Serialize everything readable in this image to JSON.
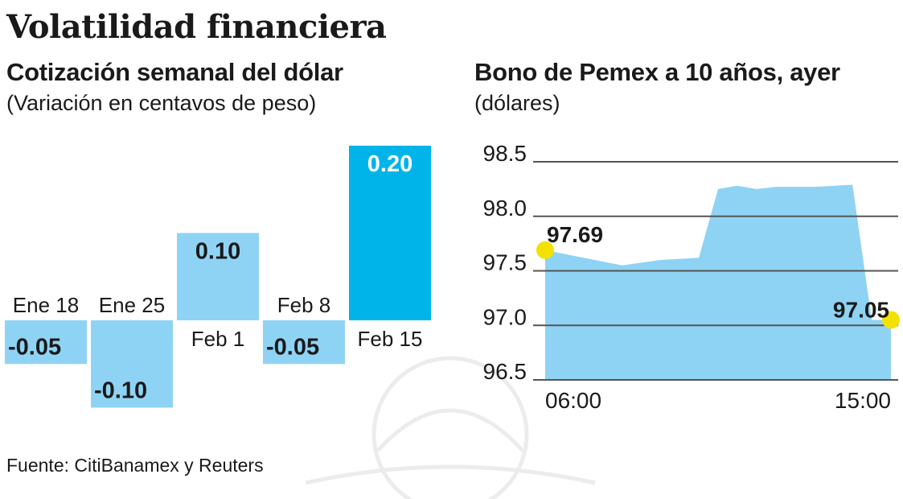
{
  "title": "Volatilidad financiera",
  "source": "Fuente: CitiBanamex y Reuters",
  "colors": {
    "bar_light": "#8fd3f4",
    "bar_highlight": "#00b4e9",
    "area_fill": "#8fd3f4",
    "marker": "#f3e200",
    "grid": "#555555"
  },
  "chart_data": [
    {
      "type": "bar",
      "title": "Cotización semanal del dólar",
      "subtitle": "(Variación en centavos de peso)",
      "categories": [
        "Ene 18",
        "Ene 25",
        "Feb 1",
        "Feb 8",
        "Feb 15"
      ],
      "values": [
        -0.05,
        -0.1,
        0.1,
        -0.05,
        0.2
      ],
      "value_labels": [
        "-0.05",
        "-0.10",
        "0.10",
        "-0.05",
        "0.20"
      ],
      "highlight_index": 4,
      "ylim": [
        -0.1,
        0.2
      ],
      "grid": false
    },
    {
      "type": "area",
      "title": "Bono de Pemex a 10 años, ayer",
      "subtitle": "(dólares)",
      "y_ticks": [
        "98.5",
        "98.0",
        "97.5",
        "97.0",
        "96.5"
      ],
      "ylim": [
        96.5,
        98.5
      ],
      "x_tick_labels": [
        "06:00",
        "15:00"
      ],
      "x": [
        "06:00",
        "07:00",
        "08:00",
        "09:00",
        "10:00",
        "10:30",
        "11:00",
        "11:30",
        "12:00",
        "13:00",
        "14:00",
        "14:30",
        "15:00"
      ],
      "y": [
        97.69,
        97.62,
        97.55,
        97.6,
        97.62,
        98.25,
        98.28,
        98.25,
        98.27,
        98.27,
        98.29,
        97.05,
        97.05
      ],
      "annotations": [
        {
          "label": "97.69",
          "x": "06:00",
          "y": 97.69
        },
        {
          "label": "97.05",
          "x": "15:00",
          "y": 97.05
        }
      ],
      "grid": true
    }
  ]
}
